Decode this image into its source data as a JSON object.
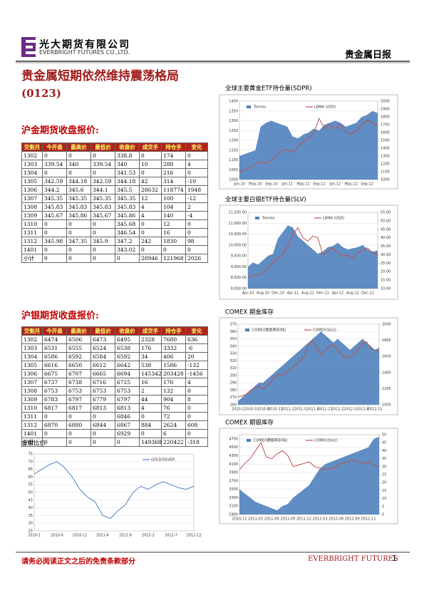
{
  "header": {
    "company_cn": "光大期货有限公司",
    "company_en": "EVERBRIGHT FUTURES CO.,LTD.",
    "report_name": "贵金属日报"
  },
  "title": "贵金属短期依然维持震荡格局",
  "date_code": "(0123)",
  "tables": [
    {
      "heading": "沪金期货收盘报价:",
      "columns": [
        "交割月",
        "今开盘",
        "最高价",
        "最低价",
        "收盘价",
        "成交手",
        "持仓手",
        "变化"
      ],
      "rows": [
        [
          "1302",
          "0",
          "0",
          "0",
          "338.8",
          "0",
          "174",
          "0"
        ],
        [
          "1303",
          "339.54",
          "340",
          "339.54",
          "340",
          "10",
          "288",
          "4"
        ],
        [
          "1304",
          "0",
          "0",
          "0",
          "341.53",
          "0",
          "216",
          "0"
        ],
        [
          "1305",
          "342.59",
          "344.18",
          "342.59",
          "344.18",
          "42",
          "314",
          "-10"
        ],
        [
          "1306",
          "344.2",
          "345.6",
          "344.1",
          "345.5",
          "28632",
          "118774",
          "1948"
        ],
        [
          "1307",
          "345.35",
          "345.35",
          "345.35",
          "345.35",
          "12",
          "100",
          "-12"
        ],
        [
          "1308",
          "345.83",
          "345.83",
          "345.83",
          "345.83",
          "4",
          "104",
          "2"
        ],
        [
          "1309",
          "345.67",
          "345.86",
          "345.67",
          "345.86",
          "4",
          "140",
          "-4"
        ],
        [
          "1310",
          "0",
          "0",
          "0",
          "345.68",
          "0",
          "12",
          "0"
        ],
        [
          "1311",
          "0",
          "0",
          "0",
          "346.54",
          "0",
          "16",
          "0"
        ],
        [
          "1312",
          "345.98",
          "347.35",
          "345.9",
          "347.2",
          "242",
          "1830",
          "98"
        ],
        [
          "1401",
          "0",
          "0",
          "0",
          "343.02",
          "0",
          "0",
          "0"
        ],
        [
          "小计",
          "0",
          "0",
          "0",
          "0",
          "28946",
          "121968",
          "2026"
        ]
      ]
    },
    {
      "heading": "沪银期货收盘报价:",
      "columns": [
        "交割月",
        "今开盘",
        "最高价",
        "最低价",
        "收盘价",
        "成交手",
        "持仓手",
        "变化"
      ],
      "rows": [
        [
          "1302",
          "6474",
          "6506",
          "6473",
          "6495",
          "2328",
          "7680",
          "636"
        ],
        [
          "1303",
          "6531",
          "6555",
          "6524",
          "6538",
          "176",
          "3332",
          "-6"
        ],
        [
          "1304",
          "6586",
          "6592",
          "6584",
          "6592",
          "34",
          "406",
          "20"
        ],
        [
          "1305",
          "6616",
          "6650",
          "6612",
          "6642",
          "538",
          "1586",
          "-132"
        ],
        [
          "1306",
          "6675",
          "6707",
          "6665",
          "6694",
          "145342",
          "203428",
          "-1456"
        ],
        [
          "1307",
          "6737",
          "6738",
          "6716",
          "6725",
          "16",
          "176",
          "4"
        ],
        [
          "1308",
          "6753",
          "6753",
          "6753",
          "6753",
          "2",
          "132",
          "0"
        ],
        [
          "1309",
          "6783",
          "6797",
          "6779",
          "6797",
          "44",
          "904",
          "8"
        ],
        [
          "1310",
          "6817",
          "6817",
          "6813",
          "6813",
          "4",
          "76",
          "0"
        ],
        [
          "1311",
          "0",
          "0",
          "0",
          "6846",
          "0",
          "72",
          "0"
        ],
        [
          "1312",
          "6870",
          "6880",
          "6844",
          "6867",
          "884",
          "2624",
          "608"
        ],
        [
          "1401",
          "0",
          "0",
          "0",
          "6929",
          "0",
          "6",
          "0"
        ],
        [
          "小计",
          "0",
          "0",
          "0",
          "0",
          "149368",
          "220422",
          "-318"
        ]
      ]
    }
  ],
  "charts": [
    {
      "type": "line",
      "title": "金银比价",
      "legend": "upper right",
      "categories": [
        "2010-1",
        null,
        null,
        "2010-6",
        null,
        null,
        "2010-11",
        null,
        null,
        "2011-4",
        null,
        null,
        "2011-9",
        null,
        null,
        "2012-2",
        null,
        null,
        "2012-7",
        null,
        null,
        "2012-12"
      ],
      "ylim": [
        25,
        75
      ],
      "yticks": [
        25,
        30,
        35,
        40,
        45,
        50,
        55,
        60,
        65,
        70,
        75
      ],
      "grid": true,
      "series": [
        {
          "name": "GOLD/SILVER",
          "color": "#4f81bd",
          "style": "line",
          "values": [
            62,
            65,
            68,
            70,
            66,
            60,
            52,
            47,
            44,
            35,
            33,
            38,
            42,
            50,
            54,
            52,
            55,
            57,
            55,
            53,
            52,
            54
          ]
        }
      ]
    },
    {
      "type": "combo",
      "title": "全球主要黄金ETF持仓量(SDPR)",
      "legend": "upper left",
      "categories": [
        "Jan-10",
        null,
        null,
        "May-10",
        null,
        null,
        "Sep-10",
        null,
        null,
        "Jan-11",
        null,
        null,
        "May-11",
        null,
        null,
        "Sep-11",
        null,
        null,
        "Jan-12",
        null,
        null,
        "May-12",
        null,
        null,
        "Sep-12",
        null,
        null
      ],
      "ylim": [
        1000,
        1400
      ],
      "yticks": [
        1000,
        1050,
        1100,
        1150,
        1200,
        1250,
        1300,
        1350,
        1400
      ],
      "y2lim": [
        1000,
        2000
      ],
      "y2ticks": [
        1000,
        1100,
        1200,
        1300,
        1400,
        1500,
        1600,
        1700,
        1800,
        1900,
        2000
      ],
      "grid": true,
      "series": [
        {
          "name": "Tonnes",
          "color": "#4f81bd",
          "style": "area",
          "values": [
            1120,
            1130,
            1140,
            1150,
            1270,
            1290,
            1300,
            1290,
            1280,
            1270,
            1220,
            1210,
            1230,
            1240,
            1260,
            1250,
            1280,
            1290,
            1300,
            1290,
            1270,
            1280,
            1290,
            1320,
            1330,
            1350,
            1340
          ]
        },
        {
          "name": "LBMA (USD)",
          "color": "#c0504d",
          "style": "line",
          "axis": "y2",
          "values": [
            1100,
            1120,
            1150,
            1200,
            1230,
            1200,
            1250,
            1300,
            1370,
            1380,
            1350,
            1420,
            1480,
            1530,
            1600,
            1780,
            1650,
            1700,
            1650,
            1700,
            1600,
            1580,
            1620,
            1700,
            1760,
            1720,
            1680
          ]
        }
      ]
    },
    {
      "type": "combo",
      "title": "全球主要白银ETF持仓量(SLV)",
      "legend": "upper left",
      "categories": [
        "Apr-10",
        null,
        null,
        "Aug-10",
        null,
        null,
        "Dec-10",
        null,
        null,
        "Apr-11",
        null,
        null,
        "Aug-11",
        null,
        null,
        "Dec-11",
        null,
        null,
        "Apr-12",
        null,
        null,
        "Aug-12",
        null,
        null,
        "Dec-12",
        null,
        null
      ],
      "ylim": [
        8000,
        11500
      ],
      "yticks": [
        {
          "value": 8000,
          "label": "8,000.00"
        },
        {
          "value": 8500,
          "label": "8,500.00"
        },
        {
          "value": 9000,
          "label": "9,000.00"
        },
        {
          "value": 9500,
          "label": "9,500.00"
        },
        {
          "value": 10000,
          "label": "10,000.00"
        },
        {
          "value": 10500,
          "label": "10,500.00"
        },
        {
          "value": 11000,
          "label": "11,000.00"
        },
        {
          "value": 11500,
          "label": "11,500.00"
        }
      ],
      "y2lim": [
        10,
        55
      ],
      "y2ticks": [
        {
          "value": 10,
          "label": "10.00"
        },
        {
          "value": 15,
          "label": "15.00"
        },
        {
          "value": 20,
          "label": "20.00"
        },
        {
          "value": 25,
          "label": "25.00"
        },
        {
          "value": 30,
          "label": "30.00"
        },
        {
          "value": 35,
          "label": "35.00"
        },
        {
          "value": 40,
          "label": "40.00"
        },
        {
          "value": 45,
          "label": "45.00"
        },
        {
          "value": 50,
          "label": "50.00"
        },
        {
          "value": 55,
          "label": "55.00"
        }
      ],
      "grid": true,
      "series": [
        {
          "name": "Tonnes",
          "color": "#4f81bd",
          "style": "area",
          "values": [
            9000,
            9200,
            9100,
            9300,
            9500,
            9600,
            10300,
            10600,
            10900,
            10800,
            10400,
            10200,
            10000,
            9800,
            9600,
            9700,
            9900,
            9950,
            10100,
            9900,
            9800,
            9850,
            9900,
            10000,
            9800,
            9700,
            9750
          ]
        },
        {
          "name": "LBMA (USD)",
          "color": "#c0504d",
          "style": "line",
          "axis": "y2",
          "values": [
            17,
            18,
            18,
            19,
            22,
            26,
            28,
            30,
            35,
            42,
            46,
            40,
            38,
            41,
            40,
            30,
            32,
            34,
            31,
            29,
            30,
            28,
            31,
            33,
            34,
            31,
            30
          ]
        }
      ]
    },
    {
      "type": "combo",
      "title": "COMEX 期金库存",
      "legend": "upper left",
      "categories": [
        "2010-2",
        null,
        null,
        "2010-5",
        null,
        null,
        "2010-8",
        null,
        null,
        "2010-11",
        null,
        null,
        "2011-2",
        null,
        null,
        "2011-5",
        null,
        null,
        "2011-8",
        null,
        null,
        "2011-11",
        null,
        null,
        "2012-2",
        null,
        null,
        "2012-5",
        null,
        null,
        "2012-8",
        null,
        null,
        "2012-11",
        null
      ],
      "ylim": [
        260,
        370
      ],
      "yticks": [
        260,
        270,
        280,
        290,
        300,
        310,
        320,
        330,
        340,
        350,
        360,
        370
      ],
      "y2lim": [
        1000,
        2000
      ],
      "y2ticks": [
        1000,
        1200,
        1400,
        1600,
        1800,
        2000
      ],
      "grid": true,
      "series": [
        {
          "name": "COMEX黄金库存(吨)",
          "color": "#4f81bd",
          "style": "area",
          "values": [
            265,
            270,
            275,
            280,
            285,
            290,
            290,
            295,
            300,
            305,
            310,
            315,
            320,
            325,
            330,
            335,
            340,
            345,
            350,
            355,
            360,
            355,
            350,
            345,
            350,
            345,
            340,
            335,
            340,
            345,
            350,
            345,
            340,
            335,
            338
          ]
        },
        {
          "name": "COMEX(S/oz)",
          "color": "#c0504d",
          "style": "line",
          "axis": "y2",
          "values": [
            1100,
            1110,
            1130,
            1180,
            1210,
            1230,
            1200,
            1230,
            1290,
            1350,
            1380,
            1370,
            1420,
            1450,
            1500,
            1550,
            1600,
            1750,
            1800,
            1700,
            1620,
            1680,
            1720,
            1750,
            1680,
            1620,
            1580,
            1600,
            1620,
            1700,
            1760,
            1780,
            1700,
            1680,
            1660
          ]
        }
      ]
    },
    {
      "type": "combo",
      "title": "COMEX 期银库存",
      "legend": "upper left",
      "categories": [
        "2010-12",
        null,
        null,
        "2011-03",
        null,
        null,
        "2011-06",
        null,
        null,
        "2011-09",
        null,
        null,
        "2011-12",
        null,
        null,
        "2012-03",
        null,
        null,
        "2012-06",
        null,
        null,
        "2012-09",
        null,
        null,
        "2012-12",
        null,
        null
      ],
      "ylim": [
        2900,
        4800
      ],
      "yticks": [
        2900,
        3100,
        3300,
        3500,
        3700,
        3900,
        4100,
        4300,
        4500,
        4700
      ],
      "y2lim": [
        0,
        50
      ],
      "y2ticks": [
        0,
        5,
        10,
        15,
        20,
        25,
        30,
        35,
        40,
        45,
        50
      ],
      "grid": true,
      "series": [
        {
          "name": "COMEX期银库存(吨)",
          "color": "#4f81bd",
          "style": "area",
          "values": [
            3500,
            3400,
            3300,
            3200,
            3150,
            3100,
            3050,
            3000,
            3100,
            3150,
            3300,
            3400,
            3500,
            3600,
            3800,
            4000,
            4100,
            4150,
            4200,
            4250,
            4300,
            4350,
            4400,
            4450,
            4500,
            4700,
            4750
          ]
        },
        {
          "name": "COMEX(S/oz)",
          "color": "#c0504d",
          "style": "line",
          "axis": "y2",
          "values": [
            28,
            32,
            35,
            40,
            45,
            36,
            35,
            38,
            40,
            37,
            30,
            31,
            32,
            33,
            30,
            29,
            28,
            29,
            30,
            32,
            33,
            34,
            33,
            32,
            33,
            31,
            30
          ]
        }
      ]
    }
  ],
  "footer": {
    "disclaimer": "请务必阅读正文之后的免责条款部分",
    "brand": "EVERBRIGHT FUTURES",
    "page": "1"
  }
}
